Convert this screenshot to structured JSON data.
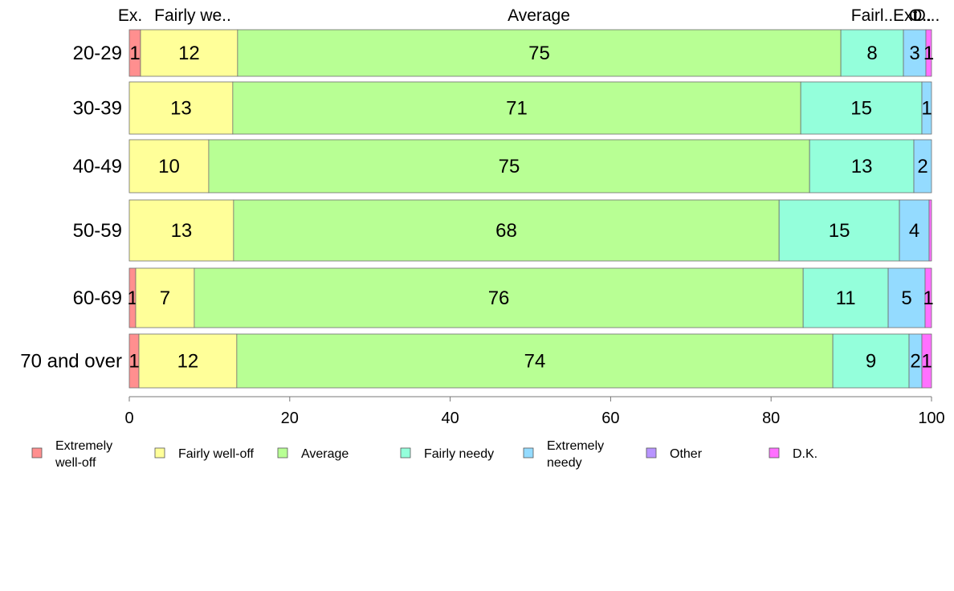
{
  "chart_data": {
    "type": "bar",
    "orientation": "horizontal",
    "stacked": true,
    "categories": [
      "20-29",
      "30-39",
      "40-49",
      "50-59",
      "60-69",
      "70 and over"
    ],
    "xlim": [
      0,
      100
    ],
    "xticks": [
      "0",
      "20",
      "40",
      "60",
      "80",
      "100"
    ],
    "grid": false,
    "legend_position": "bottom",
    "top_labels": [
      "Ex.",
      "Fairly we..",
      "Average",
      "Fairl..",
      "Ext..",
      "O..",
      "D..."
    ],
    "series": [
      {
        "name": "Extremely well-off",
        "color": "#FF8F8F",
        "values": [
          1.4,
          0,
          0,
          0,
          0.8,
          1.2
        ],
        "labels": [
          "1",
          "",
          "",
          "",
          "1",
          "1"
        ]
      },
      {
        "name": "Fairly well-off",
        "color": "#FFFF99",
        "values": [
          12.1,
          12.9,
          9.9,
          13,
          7.3,
          12.2
        ],
        "labels": [
          "12",
          "13",
          "10",
          "13",
          "7",
          "12"
        ]
      },
      {
        "name": "Average",
        "color": "#B8FF94",
        "values": [
          75.2,
          70.8,
          74.9,
          68,
          75.9,
          74.3
        ],
        "labels": [
          "75",
          "71",
          "75",
          "68",
          "76",
          "74"
        ]
      },
      {
        "name": "Fairly needy",
        "color": "#94FFDB",
        "values": [
          7.8,
          15.1,
          13,
          15,
          10.6,
          9.5
        ],
        "labels": [
          "8",
          "15",
          "13",
          "15",
          "11",
          "9"
        ]
      },
      {
        "name": "Extremely needy",
        "color": "#94DBFF",
        "values": [
          2.8,
          1.2,
          2.2,
          3.7,
          4.6,
          1.6
        ],
        "labels": [
          "3",
          "1",
          "2",
          "4",
          "5",
          "2"
        ]
      },
      {
        "name": "Other",
        "color": "#B894FF",
        "values": [
          0,
          0,
          0,
          0,
          0,
          0
        ],
        "labels": [
          "",
          "",
          "",
          "",
          "",
          ""
        ]
      },
      {
        "name": "D.K.",
        "color": "#FF70FF",
        "values": [
          0.7,
          0,
          0,
          0.3,
          0.8,
          1.2
        ],
        "labels": [
          "1",
          "",
          "",
          "",
          "1",
          "1"
        ]
      }
    ],
    "legend": [
      {
        "lines": [
          "Extremely",
          "well-off"
        ],
        "color": "#FF8F8F"
      },
      {
        "lines": [
          "Fairly well-off"
        ],
        "color": "#FFFF99"
      },
      {
        "lines": [
          "Average"
        ],
        "color": "#B8FF94"
      },
      {
        "lines": [
          "Fairly needy"
        ],
        "color": "#94FFDB"
      },
      {
        "lines": [
          "Extremely",
          "needy"
        ],
        "color": "#94DBFF"
      },
      {
        "lines": [
          "Other"
        ],
        "color": "#B894FF"
      },
      {
        "lines": [
          "D.K."
        ],
        "color": "#FF70FF"
      }
    ]
  }
}
